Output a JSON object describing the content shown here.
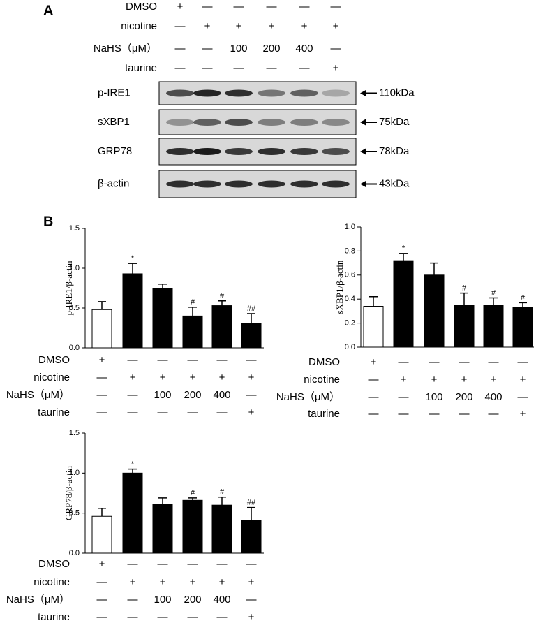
{
  "panel_a": {
    "label": "A",
    "treatments": [
      {
        "label": "DMSO",
        "marks": [
          "+",
          "—",
          "—",
          "—",
          "—",
          "—"
        ]
      },
      {
        "label": "nicotine",
        "marks": [
          "—",
          "+",
          "+",
          "+",
          "+",
          "+"
        ]
      },
      {
        "label": "NaHS（μM）",
        "marks": [
          "—",
          "—",
          "100",
          "200",
          "400",
          "—"
        ]
      },
      {
        "label": "taurine",
        "marks": [
          "—",
          "—",
          "—",
          "—",
          "—",
          "+"
        ]
      }
    ],
    "blots": [
      {
        "name": "p-IRE1",
        "size": "110kDa"
      },
      {
        "name": "sXBP1",
        "size": "75kDa"
      },
      {
        "name": "GRP78",
        "size": "78kDa"
      },
      {
        "name": "β-actin",
        "size": "43kDa"
      }
    ]
  },
  "panel_b": {
    "label": "B"
  },
  "chart_data": [
    {
      "type": "bar",
      "y_label": "p-IRE1/β-actin",
      "values": [
        0.48,
        0.93,
        0.75,
        0.4,
        0.53,
        0.31
      ],
      "errors": [
        0.1,
        0.13,
        0.05,
        0.11,
        0.06,
        0.12
      ],
      "annotations": [
        null,
        "*",
        null,
        "#",
        "#",
        "##"
      ],
      "colors": [
        "#ffffff",
        "#000000",
        "#000000",
        "#000000",
        "#000000",
        "#000000"
      ],
      "ylim": [
        0,
        1.5
      ],
      "yticks": [
        {
          "value": 0,
          "label": "0.0"
        },
        {
          "value": 0.5,
          "label": "0.5"
        },
        {
          "value": 1,
          "label": "1.0"
        },
        {
          "value": 1.5,
          "label": "1.5"
        }
      ],
      "treatments": [
        {
          "label": "DMSO",
          "marks": [
            "+",
            "—",
            "—",
            "—",
            "—",
            "—"
          ]
        },
        {
          "label": "nicotine",
          "marks": [
            "—",
            "+",
            "+",
            "+",
            "+",
            "+"
          ]
        },
        {
          "label": "NaHS（μM）",
          "marks": [
            "—",
            "—",
            "100",
            "200",
            "400",
            "—"
          ]
        },
        {
          "label": "taurine",
          "marks": [
            "—",
            "—",
            "—",
            "—",
            "—",
            "+"
          ]
        }
      ]
    },
    {
      "type": "bar",
      "y_label": "sXBP1/β-actin",
      "values": [
        0.34,
        0.72,
        0.6,
        0.35,
        0.35,
        0.33
      ],
      "errors": [
        0.08,
        0.06,
        0.1,
        0.1,
        0.06,
        0.04
      ],
      "annotations": [
        null,
        "*",
        null,
        "#",
        "#",
        "#"
      ],
      "colors": [
        "#ffffff",
        "#000000",
        "#000000",
        "#000000",
        "#000000",
        "#000000"
      ],
      "ylim": [
        0,
        1.0
      ],
      "yticks": [
        {
          "value": 0,
          "label": "0.0"
        },
        {
          "value": 0.2,
          "label": "0.2"
        },
        {
          "value": 0.4,
          "label": "0.4"
        },
        {
          "value": 0.6,
          "label": "0.6"
        },
        {
          "value": 0.8,
          "label": "0.8"
        },
        {
          "value": 1,
          "label": "1.0"
        }
      ],
      "treatments": [
        {
          "label": "DMSO",
          "marks": [
            "+",
            "—",
            "—",
            "—",
            "—",
            "—"
          ]
        },
        {
          "label": "nicotine",
          "marks": [
            "—",
            "+",
            "+",
            "+",
            "+",
            "+"
          ]
        },
        {
          "label": "NaHS（μM）",
          "marks": [
            "—",
            "—",
            "100",
            "200",
            "400",
            "—"
          ]
        },
        {
          "label": "taurine",
          "marks": [
            "—",
            "—",
            "—",
            "—",
            "—",
            "+"
          ]
        }
      ]
    },
    {
      "type": "bar",
      "y_label": "GRP78/β-actin",
      "values": [
        0.46,
        1.0,
        0.61,
        0.66,
        0.6,
        0.41
      ],
      "errors": [
        0.1,
        0.05,
        0.08,
        0.03,
        0.1,
        0.16
      ],
      "annotations": [
        null,
        "*",
        null,
        "#",
        "#",
        "##"
      ],
      "colors": [
        "#ffffff",
        "#000000",
        "#000000",
        "#000000",
        "#000000",
        "#000000"
      ],
      "ylim": [
        0,
        1.5
      ],
      "yticks": [
        {
          "value": 0,
          "label": "0.0"
        },
        {
          "value": 0.5,
          "label": "0.5"
        },
        {
          "value": 1,
          "label": "1.0"
        },
        {
          "value": 1.5,
          "label": "1.5"
        }
      ],
      "treatments": [
        {
          "label": "DMSO",
          "marks": [
            "+",
            "—",
            "—",
            "—",
            "—",
            "—"
          ]
        },
        {
          "label": "nicotine",
          "marks": [
            "—",
            "+",
            "+",
            "+",
            "+",
            "+"
          ]
        },
        {
          "label": "NaHS（μM）",
          "marks": [
            "—",
            "—",
            "100",
            "200",
            "400",
            "—"
          ]
        },
        {
          "label": "taurine",
          "marks": [
            "—",
            "—",
            "—",
            "—",
            "—",
            "+"
          ]
        }
      ]
    }
  ]
}
